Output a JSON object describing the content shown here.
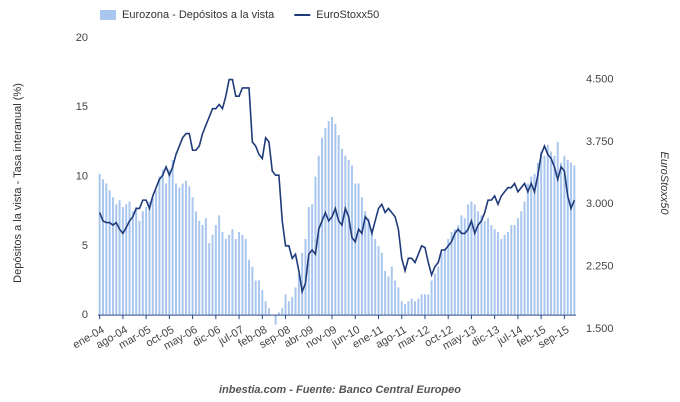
{
  "chart_data": {
    "type": "combo",
    "y_label": "Depósitos a la vista - Tasa interanual (%)",
    "y2_label": "EuroStoxx50",
    "source": "inbestia.com - Fuente: Banco Central Europeo",
    "categories": [
      "ene-04",
      null,
      null,
      null,
      null,
      null,
      null,
      "ago-04",
      null,
      null,
      null,
      null,
      null,
      null,
      "mar-05",
      null,
      null,
      null,
      null,
      null,
      null,
      "oct-05",
      null,
      null,
      null,
      null,
      null,
      null,
      "may-06",
      null,
      null,
      null,
      null,
      null,
      null,
      "dic-06",
      null,
      null,
      null,
      null,
      null,
      null,
      "jul-07",
      null,
      null,
      null,
      null,
      null,
      null,
      "feb-08",
      null,
      null,
      null,
      null,
      null,
      null,
      "sep-08",
      null,
      null,
      null,
      null,
      null,
      null,
      "abr-09",
      null,
      null,
      null,
      null,
      null,
      null,
      "nov-09",
      null,
      null,
      null,
      null,
      null,
      null,
      "jun-10",
      null,
      null,
      null,
      null,
      null,
      null,
      "ene-11",
      null,
      null,
      null,
      null,
      null,
      null,
      "ago-11",
      null,
      null,
      null,
      null,
      null,
      null,
      "mar-12",
      null,
      null,
      null,
      null,
      null,
      null,
      "oct-12",
      null,
      null,
      null,
      null,
      null,
      null,
      "may-13",
      null,
      null,
      null,
      null,
      null,
      null,
      "dic-13",
      null,
      null,
      null,
      null,
      null,
      null,
      "jul-14",
      null,
      null,
      null,
      null,
      null,
      null,
      "feb-15",
      null,
      null,
      null,
      null,
      null,
      null,
      "sep-15",
      null,
      null,
      null
    ],
    "series": [
      {
        "name": "Eurozona - Depósitos a la vista",
        "type": "bar",
        "color": "#a9c6ee",
        "values": [
          10.2,
          9.8,
          9.5,
          9.0,
          8.5,
          8.0,
          8.3,
          7.8,
          8.0,
          8.2,
          7.5,
          7.8,
          6.8,
          7.5,
          7.8,
          8.2,
          8.5,
          9.0,
          10.0,
          10.5,
          9.5,
          10.5,
          11.2,
          9.5,
          9.2,
          9.5,
          9.7,
          9.3,
          8.5,
          7.5,
          6.8,
          6.5,
          7.0,
          5.2,
          5.8,
          6.5,
          7.2,
          6.0,
          5.5,
          5.8,
          6.2,
          5.5,
          6.0,
          5.8,
          5.5,
          4.0,
          3.5,
          2.5,
          2.5,
          1.8,
          1.0,
          0.5,
          0.0,
          -0.7,
          0.2,
          0.5,
          1.5,
          1.0,
          1.3,
          2.0,
          3.0,
          4.5,
          5.5,
          7.8,
          8.0,
          10.0,
          11.5,
          12.8,
          13.5,
          14.0,
          14.3,
          13.8,
          13.0,
          12.0,
          11.5,
          11.2,
          10.8,
          9.5,
          9.5,
          8.5,
          7.5,
          7.0,
          6.2,
          5.5,
          5.0,
          4.5,
          3.2,
          2.8,
          3.5,
          2.5,
          2.0,
          1.0,
          0.8,
          1.0,
          1.2,
          1.0,
          1.2,
          1.5,
          1.5,
          1.5,
          2.5,
          3.0,
          3.5,
          4.5,
          4.8,
          5.5,
          6.0,
          6.2,
          6.5,
          7.2,
          7.0,
          8.0,
          8.2,
          8.0,
          7.5,
          7.2,
          6.8,
          7.0,
          6.5,
          6.2,
          6.0,
          5.5,
          5.8,
          6.0,
          6.5,
          6.5,
          7.0,
          7.5,
          8.2,
          9.5,
          10.0,
          10.2,
          11.0,
          11.8,
          11.5,
          12.3,
          11.8,
          11.5,
          12.5,
          11.0,
          11.5,
          11.2,
          11.0,
          10.8
        ]
      },
      {
        "name": "EuroStoxx50",
        "type": "line",
        "axis": "y2",
        "color": "#1f3b7a",
        "values": [
          2900,
          2800,
          2780,
          2780,
          2750,
          2780,
          2700,
          2650,
          2720,
          2800,
          2850,
          2950,
          2950,
          3050,
          3050,
          2950,
          3100,
          3200,
          3300,
          3350,
          3450,
          3350,
          3450,
          3600,
          3700,
          3800,
          3850,
          3850,
          3650,
          3650,
          3700,
          3850,
          3950,
          4050,
          4150,
          4150,
          4200,
          4150,
          4300,
          4500,
          4500,
          4300,
          4300,
          4400,
          4400,
          4400,
          3750,
          3700,
          3600,
          3550,
          3800,
          3750,
          3400,
          3350,
          3350,
          2800,
          2500,
          2500,
          2350,
          2400,
          2200,
          1950,
          2050,
          2400,
          2450,
          2400,
          2700,
          2800,
          2900,
          2800,
          2850,
          2950,
          2800,
          2750,
          2950,
          2850,
          2600,
          2550,
          2700,
          2650,
          2850,
          2800,
          2650,
          2800,
          2950,
          3000,
          2900,
          2950,
          2900,
          2850,
          2700,
          2350,
          2200,
          2350,
          2350,
          2300,
          2400,
          2500,
          2480,
          2300,
          2150,
          2250,
          2300,
          2450,
          2450,
          2500,
          2550,
          2650,
          2700,
          2650,
          2650,
          2700,
          2800,
          2650,
          2750,
          2800,
          2900,
          3050,
          3050,
          3100,
          3000,
          3100,
          3150,
          3200,
          3200,
          3250,
          3150,
          3200,
          3250,
          3150,
          3250,
          3150,
          3350,
          3600,
          3700,
          3600,
          3550,
          3450,
          3300,
          3450,
          3400,
          3100,
          2950,
          3050
        ]
      }
    ],
    "ylim": [
      -1,
      20
    ],
    "yticks": [
      0,
      5,
      10,
      15,
      20
    ],
    "y2lim": [
      1500,
      5000
    ],
    "y2ticks": [
      {
        "value": 1500,
        "label": "1.500"
      },
      {
        "value": 2250,
        "label": "2.250"
      },
      {
        "value": 3000,
        "label": "3.000"
      },
      {
        "value": 3750,
        "label": "3.750"
      },
      {
        "value": 4500,
        "label": "4.500"
      }
    ],
    "grid": false,
    "legend": "top"
  }
}
